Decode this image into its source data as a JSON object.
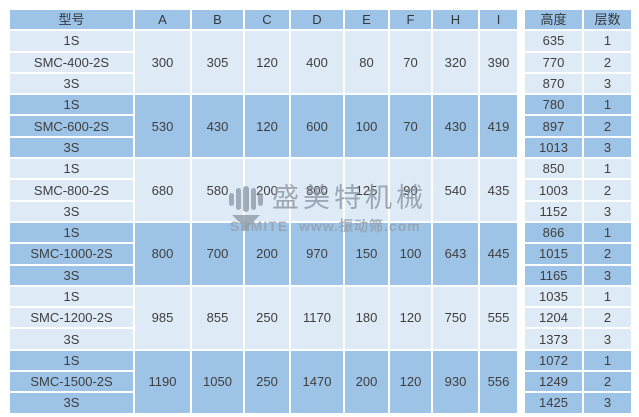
{
  "table": {
    "headers": [
      "型号",
      "A",
      "B",
      "C",
      "D",
      "E",
      "F",
      "H",
      "I",
      "高度",
      "层数"
    ],
    "groups": [
      {
        "band": "light",
        "rows": [
          "1S",
          "SMC-400-2S",
          "3S"
        ],
        "dims": [
          "300",
          "305",
          "120",
          "400",
          "80",
          "70",
          "320",
          "390"
        ],
        "heights": [
          "635",
          "770",
          "870"
        ],
        "layers": [
          "1",
          "2",
          "3"
        ]
      },
      {
        "band": "dark",
        "rows": [
          "1S",
          "SMC-600-2S",
          "3S"
        ],
        "dims": [
          "530",
          "430",
          "120",
          "600",
          "100",
          "70",
          "430",
          "419"
        ],
        "heights": [
          "780",
          "897",
          "1013"
        ],
        "layers": [
          "1",
          "2",
          "3"
        ]
      },
      {
        "band": "light",
        "rows": [
          "1S",
          "SMC-800-2S",
          "3S"
        ],
        "dims": [
          "680",
          "580",
          "200",
          "800",
          "125",
          "90",
          "540",
          "435"
        ],
        "heights": [
          "850",
          "1003",
          "1152"
        ],
        "layers": [
          "1",
          "2",
          "3"
        ]
      },
      {
        "band": "dark",
        "rows": [
          "1S",
          "SMC-1000-2S",
          "3S"
        ],
        "dims": [
          "800",
          "700",
          "200",
          "970",
          "150",
          "100",
          "643",
          "445"
        ],
        "heights": [
          "866",
          "1015",
          "1165"
        ],
        "layers": [
          "1",
          "2",
          "3"
        ]
      },
      {
        "band": "light",
        "rows": [
          "1S",
          "SMC-1200-2S",
          "3S"
        ],
        "dims": [
          "985",
          "855",
          "250",
          "1170",
          "180",
          "120",
          "750",
          "555"
        ],
        "heights": [
          "1035",
          "1204",
          "1373"
        ],
        "layers": [
          "1",
          "2",
          "3"
        ]
      },
      {
        "band": "dark",
        "rows": [
          "1S",
          "SMC-1500-2S",
          "3S"
        ],
        "dims": [
          "1190",
          "1050",
          "250",
          "1470",
          "200",
          "120",
          "930",
          "556"
        ],
        "heights": [
          "1072",
          "1249",
          "1425"
        ],
        "layers": [
          "1",
          "2",
          "3"
        ]
      }
    ]
  },
  "watermark": {
    "brand": "盛美特机械",
    "tagline": "SEMITE www.振动筛.com",
    "logo_icon": "semite-sieve-logo"
  },
  "colors": {
    "band_dark": "#9dc3e6",
    "band_light": "#deeaf6",
    "grid": "#ffffff",
    "text": "#3f3f3f",
    "watermark": "#8d99a6"
  }
}
